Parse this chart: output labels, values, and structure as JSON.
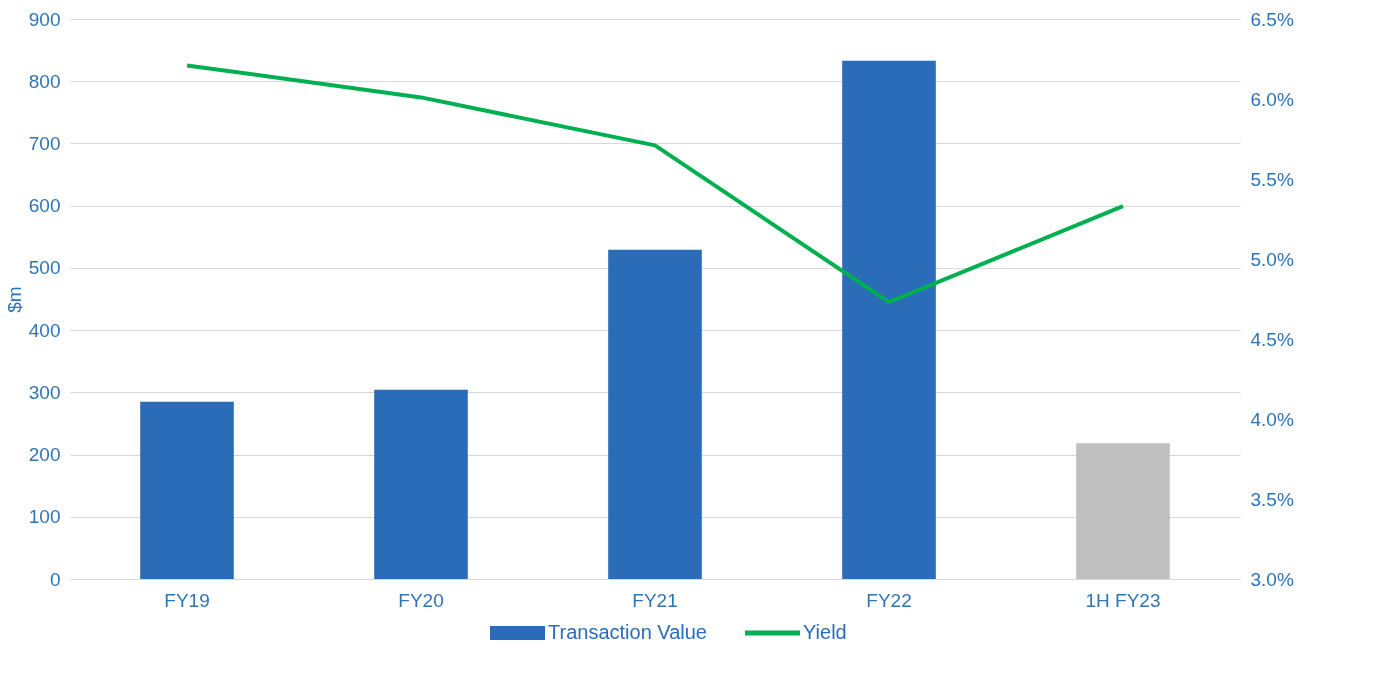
{
  "chart_data": {
    "type": "bar",
    "ylabel": "$m",
    "categories": [
      "FY19",
      "FY20",
      "FY21",
      "FY22",
      "1H FY23"
    ],
    "series": [
      {
        "name": "Transaction Value",
        "colors": [
          "#2b6cb8",
          "#2b6cb8",
          "#2b6cb8",
          "#2b6cb8",
          "#bfbfbf"
        ],
        "color": "#2b6cb8",
        "values": [
          285,
          304,
          529,
          833,
          218
        ]
      },
      {
        "name": "Yield",
        "type": "line",
        "axis": "y2",
        "color": "#00b050",
        "values": [
          6.21,
          6.01,
          5.71,
          4.73,
          5.33
        ]
      }
    ],
    "ylim": [
      0,
      900
    ],
    "yticks": [
      0,
      100,
      200,
      300,
      400,
      500,
      600,
      700,
      800,
      900
    ],
    "y2lim": [
      3.0,
      6.5
    ],
    "y2ticks": [
      {
        "value": 3.0,
        "label": "3.0%"
      },
      {
        "value": 3.5,
        "label": "3.5%"
      },
      {
        "value": 4.0,
        "label": "4.0%"
      },
      {
        "value": 4.5,
        "label": "4.5%"
      },
      {
        "value": 5.0,
        "label": "5.0%"
      },
      {
        "value": 5.5,
        "label": "5.5%"
      },
      {
        "value": 6.0,
        "label": "6.0%"
      },
      {
        "value": 6.5,
        "label": "6.5%"
      }
    ],
    "grid": "y",
    "legend": "bottom",
    "marker": "none",
    "line_style": "solid"
  }
}
